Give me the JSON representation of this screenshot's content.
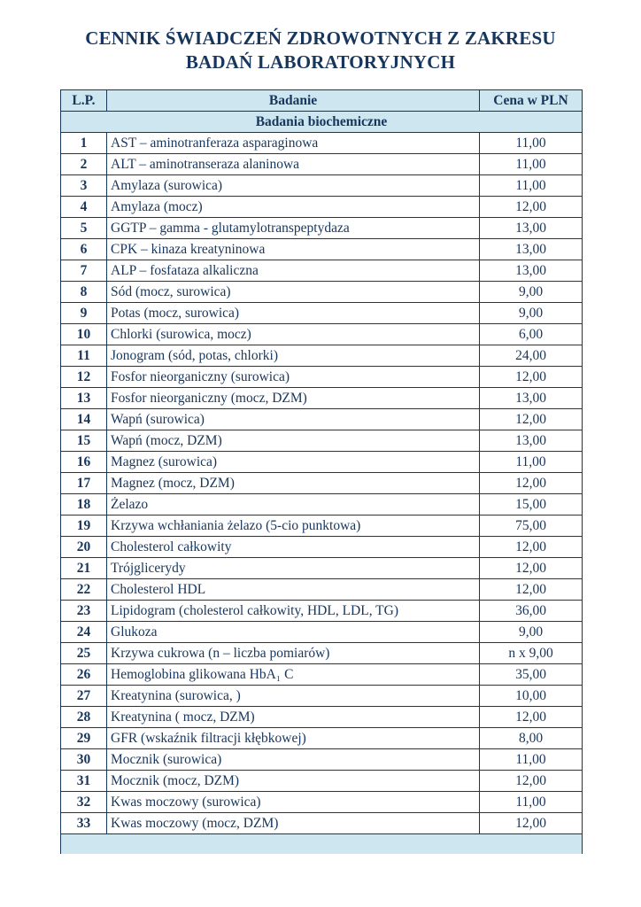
{
  "page": {
    "title": "CENNIK ŚWIADCZEŃ ZDROWOTNYCH Z ZAKRESU BADAŃ LABORATORYJNYCH"
  },
  "colors": {
    "text": "#17365d",
    "border": "#17365d",
    "header_fill": "#cde6ef",
    "page_bg": "#ffffff"
  },
  "table": {
    "headers": {
      "lp": "L.P.",
      "badanie": "Badanie",
      "cena": "Cena w PLN"
    },
    "section": "Badania biochemiczne",
    "rows": [
      {
        "lp": "1",
        "name": "AST – aminotranferaza asparaginowa",
        "price": "11,00"
      },
      {
        "lp": "2",
        "name": "ALT – aminotranseraza alaninowa",
        "price": "11,00"
      },
      {
        "lp": "3",
        "name": "Amylaza (surowica)",
        "price": "11,00"
      },
      {
        "lp": "4",
        "name": "Amylaza (mocz)",
        "price": "12,00"
      },
      {
        "lp": "5",
        "name": "GGTP – gamma - glutamylotranspeptydaza",
        "price": "13,00"
      },
      {
        "lp": "6",
        "name": "CPK – kinaza kreatyninowa",
        "price": "13,00"
      },
      {
        "lp": "7",
        "name": "ALP – fosfataza alkaliczna",
        "price": "13,00"
      },
      {
        "lp": "8",
        "name": "Sód (mocz, surowica)",
        "price": "9,00"
      },
      {
        "lp": "9",
        "name": "Potas (mocz, surowica)",
        "price": "9,00"
      },
      {
        "lp": "10",
        "name": "Chlorki (surowica, mocz)",
        "price": "6,00"
      },
      {
        "lp": "11",
        "name": "Jonogram (sód, potas, chlorki)",
        "price": "24,00"
      },
      {
        "lp": "12",
        "name": "Fosfor nieorganiczny (surowica)",
        "price": "12,00"
      },
      {
        "lp": "13",
        "name": "Fosfor nieorganiczny (mocz, DZM)",
        "price": "13,00"
      },
      {
        "lp": "14",
        "name": "Wapń (surowica)",
        "price": "12,00"
      },
      {
        "lp": "15",
        "name": "Wapń (mocz, DZM)",
        "price": "13,00"
      },
      {
        "lp": "16",
        "name": "Magnez (surowica)",
        "price": "11,00"
      },
      {
        "lp": "17",
        "name": "Magnez (mocz, DZM)",
        "price": "12,00"
      },
      {
        "lp": "18",
        "name": "Żelazo",
        "price": "15,00"
      },
      {
        "lp": "19",
        "name": "Krzywa wchłaniania żelazo (5-cio punktowa)",
        "price": "75,00"
      },
      {
        "lp": "20",
        "name": "Cholesterol całkowity",
        "price": "12,00"
      },
      {
        "lp": "21",
        "name": "Trójglicerydy",
        "price": "12,00"
      },
      {
        "lp": "22",
        "name": "Cholesterol HDL",
        "price": "12,00"
      },
      {
        "lp": "23",
        "name": "Lipidogram (cholesterol całkowity, HDL, LDL, TG)",
        "price": "36,00"
      },
      {
        "lp": "24",
        "name": "Glukoza",
        "price": "9,00"
      },
      {
        "lp": "25",
        "name": "Krzywa cukrowa (n – liczba pomiarów)",
        "price": "n x 9,00"
      },
      {
        "lp": "26",
        "name": "Hemoglobina glikowana HbA₁ C",
        "price": "35,00"
      },
      {
        "lp": "27",
        "name": "Kreatynina (surowica, )",
        "price": "10,00"
      },
      {
        "lp": "28",
        "name": "Kreatynina ( mocz, DZM)",
        "price": "12,00"
      },
      {
        "lp": "29",
        "name": "GFR (wskaźnik filtracji kłębkowej)",
        "price": "8,00"
      },
      {
        "lp": "30",
        "name": "Mocznik (surowica)",
        "price": "11,00"
      },
      {
        "lp": "31",
        "name": "Mocznik (mocz, DZM)",
        "price": "12,00"
      },
      {
        "lp": "32",
        "name": "Kwas moczowy (surowica)",
        "price": "11,00"
      },
      {
        "lp": "33",
        "name": "Kwas moczowy (mocz, DZM)",
        "price": "12,00"
      }
    ]
  }
}
